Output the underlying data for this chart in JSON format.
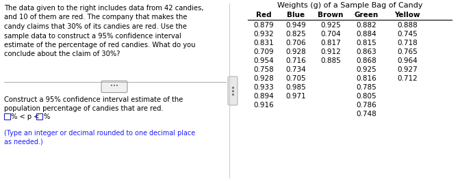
{
  "title": "Weights (g) of a Sample Bag of Candy",
  "left_text_lines": [
    "The data given to the right includes data from 42 candies,",
    "and 10 of them are red. The company that makes the",
    "candy claims that 30% of its candies are red. Use the",
    "sample data to construct a 95% confidence interval",
    "estimate of the percentage of red candies. What do you",
    "conclude about the claim of 30%?"
  ],
  "bottom_text_line1": "Construct a 95% confidence interval estimate of the",
  "bottom_text_line2": "population percentage of candies that are red.",
  "note_text": "(Type an integer or decimal rounded to one decimal place",
  "note_text2": "as needed.)",
  "columns": [
    "Red",
    "Blue",
    "Brown",
    "Green",
    "Yellow"
  ],
  "col_data": {
    "Red": [
      "0.879",
      "0.932",
      "0.831",
      "0.709",
      "0.954",
      "0.758",
      "0.928",
      "0.933",
      "0.894",
      "0.916"
    ],
    "Blue": [
      "0.949",
      "0.825",
      "0.706",
      "0.928",
      "0.716",
      "0.734",
      "0.705",
      "0.985",
      "0.971",
      ""
    ],
    "Brown": [
      "0.925",
      "0.704",
      "0.817",
      "0.912",
      "0.885",
      "",
      "",
      "",
      "",
      ""
    ],
    "Green": [
      "0.882",
      "0.884",
      "0.815",
      "0.863",
      "0.868",
      "0.925",
      "0.816",
      "0.785",
      "0.805",
      "0.786",
      "0.748"
    ],
    "Yellow": [
      "0.888",
      "0.745",
      "0.718",
      "0.765",
      "0.964",
      "0.927",
      "0.712",
      "",
      "",
      ""
    ]
  },
  "bg_color": "#ffffff",
  "text_color": "#000000",
  "blue_color": "#1a1aff",
  "divider_color": "#aaaaaa",
  "table_header_color": "#000000",
  "font_size_main": 7.2,
  "font_size_table": 7.5,
  "font_size_title": 8.0
}
